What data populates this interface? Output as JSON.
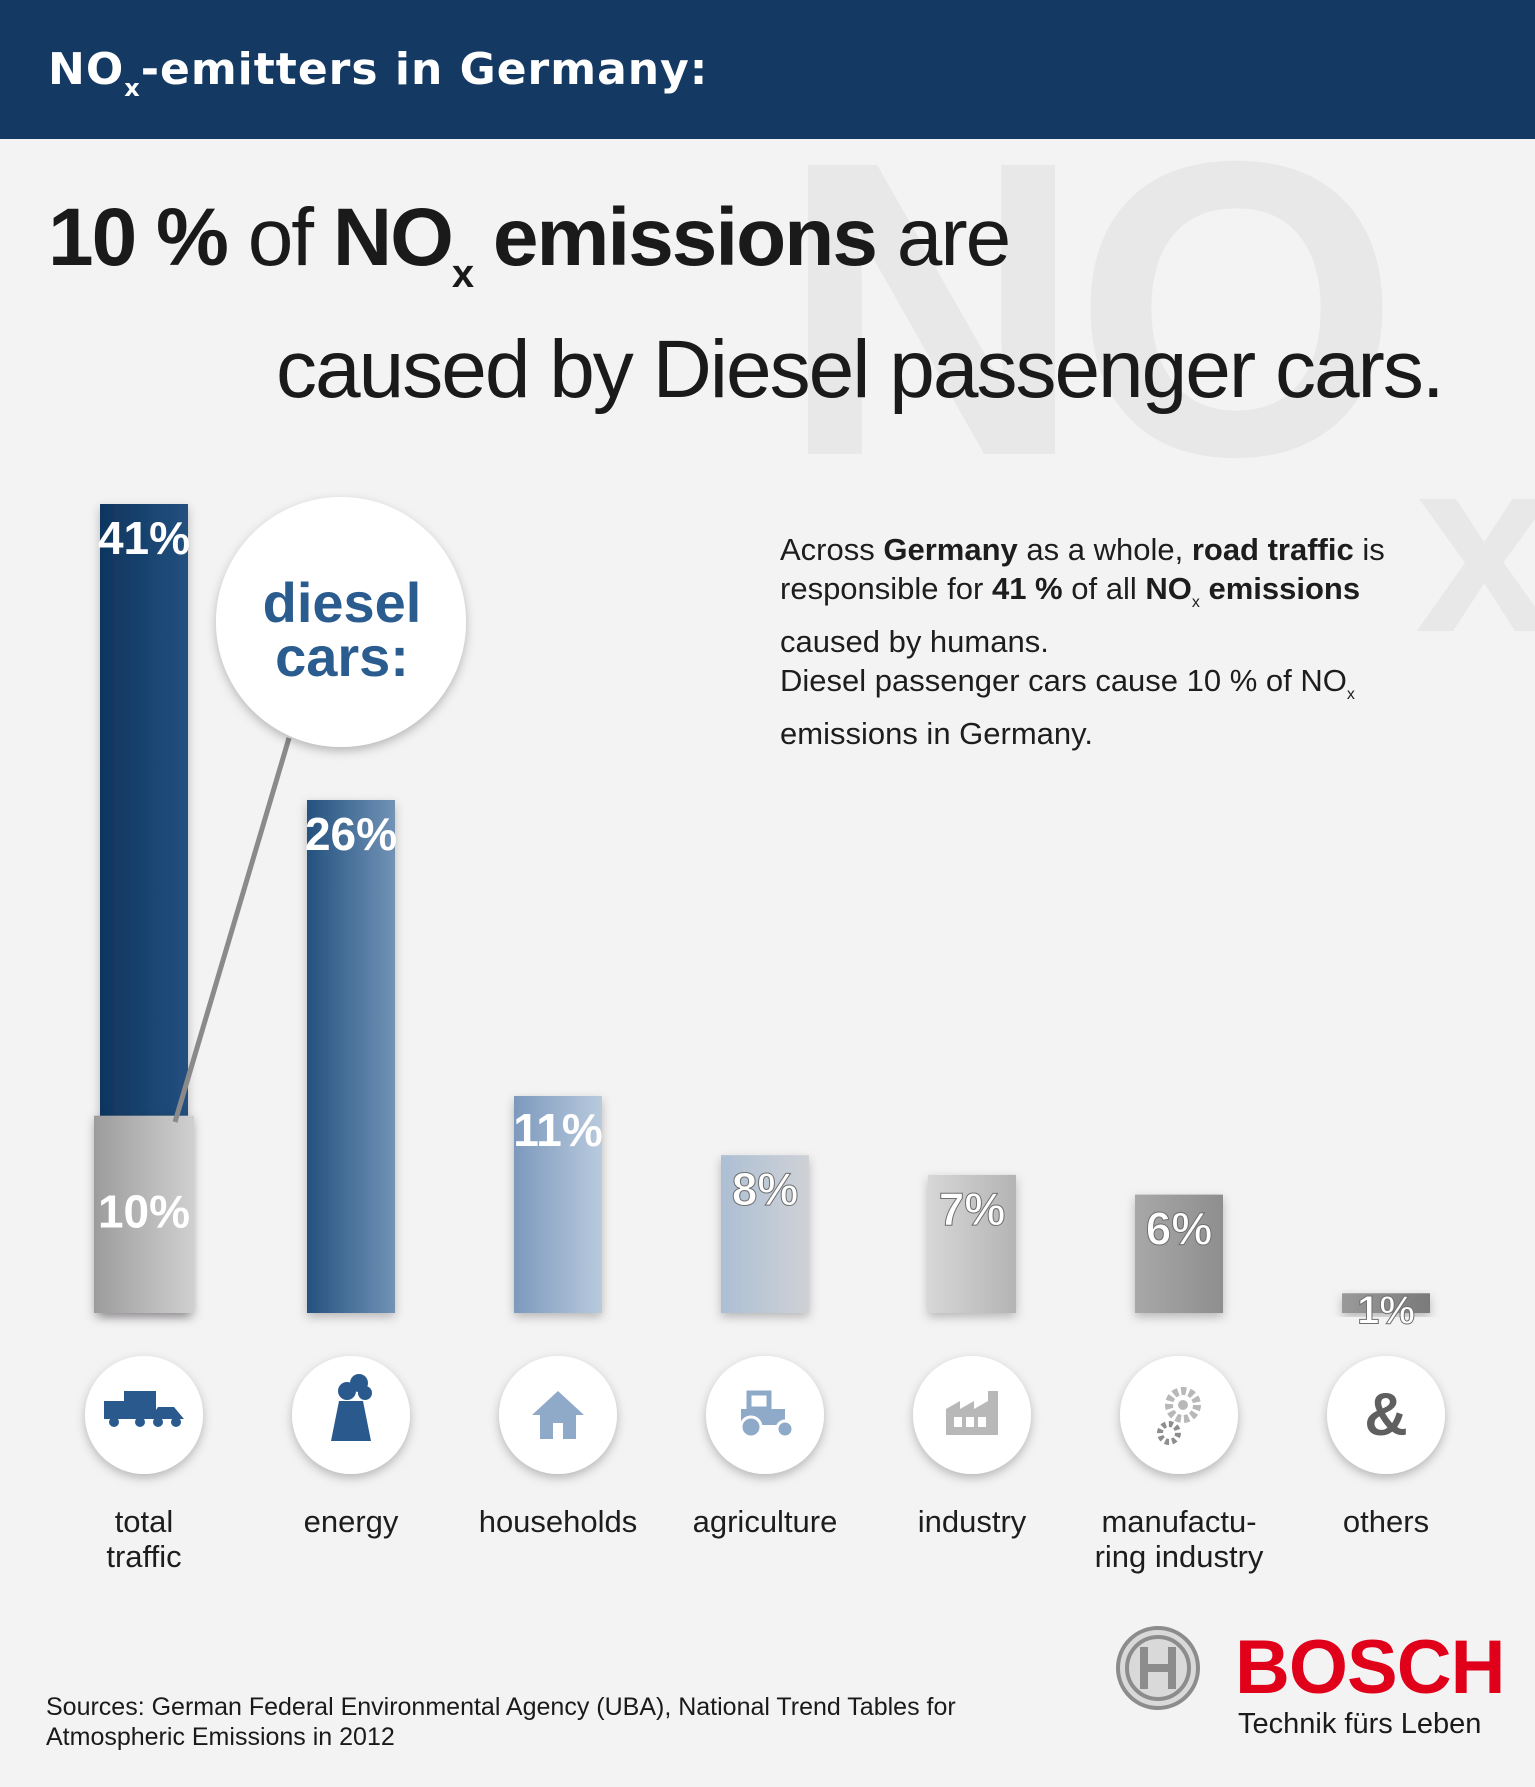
{
  "header": {
    "title_main": "NO",
    "title_sub": "x",
    "title_rest": "-emitters in Germany:"
  },
  "watermark": {
    "main": "NO",
    "sub": "x"
  },
  "headline": {
    "part1_bold": "10 %",
    "part2": " of ",
    "part3_bold": "NO",
    "part3_sub": "x",
    "part4_bold": " emissions",
    "part5": " are",
    "line2": "caused by Diesel passenger cars."
  },
  "info": {
    "s1": "Across ",
    "s2_bold": "Germany",
    "s3": " as a whole, ",
    "s4_bold": "road traffic",
    "s5": " is responsible for ",
    "s6_bold": "41 %",
    "s7": " of all ",
    "s8_bold": "NO",
    "s8_sub": "x",
    "s9_bold": " emissions",
    "s10": " caused by humans.",
    "p2a": "Diesel passenger cars cause 10 % of NO",
    "p2_sub": "x",
    "p2b": " emissions in Germany."
  },
  "callout": {
    "line1": "diesel",
    "line2": "cars:"
  },
  "chart_data": {
    "type": "bar",
    "title": "",
    "categories": [
      "total traffic",
      "energy",
      "households",
      "agriculture",
      "industry",
      "manufacturing industry",
      "others"
    ],
    "values": [
      41,
      26,
      11,
      8,
      7,
      6,
      1
    ],
    "labels": [
      "41%",
      "26%",
      "11%",
      "8%",
      "7%",
      "6%",
      "1%"
    ],
    "sub_values": {
      "category": "total traffic",
      "name": "diesel cars:",
      "value": 10,
      "label": "10%"
    },
    "unit": "%",
    "ylim": [
      0,
      41
    ],
    "grid": false,
    "legend": "none",
    "colors": [
      "#15416e",
      "#2f5e8e",
      "#8fa9c9",
      "#b7c6d7",
      "#c4c4c4",
      "#9b9b9b",
      "#8a8a8a"
    ]
  },
  "category_labels": [
    {
      "l1": "total",
      "l2": "traffic"
    },
    {
      "l1": "energy",
      "l2": ""
    },
    {
      "l1": "households",
      "l2": ""
    },
    {
      "l1": "agriculture",
      "l2": ""
    },
    {
      "l1": "industry",
      "l2": ""
    },
    {
      "l1": "manufactu-",
      "l2": "ring industry"
    },
    {
      "l1": "others",
      "l2": ""
    }
  ],
  "icons": [
    "truck-car-icon",
    "power-plant-icon",
    "house-icon",
    "tractor-icon",
    "factory-icon",
    "gears-icon",
    "ampersand-icon"
  ],
  "ampersand": "&",
  "sources": {
    "line1": "Sources: German Federal Environmental Agency (UBA), National Trend Tables for",
    "line2": "Atmospheric Emissions in 2012"
  },
  "brand": {
    "name": "BOSCH",
    "slogan": "Technik fürs Leben"
  }
}
